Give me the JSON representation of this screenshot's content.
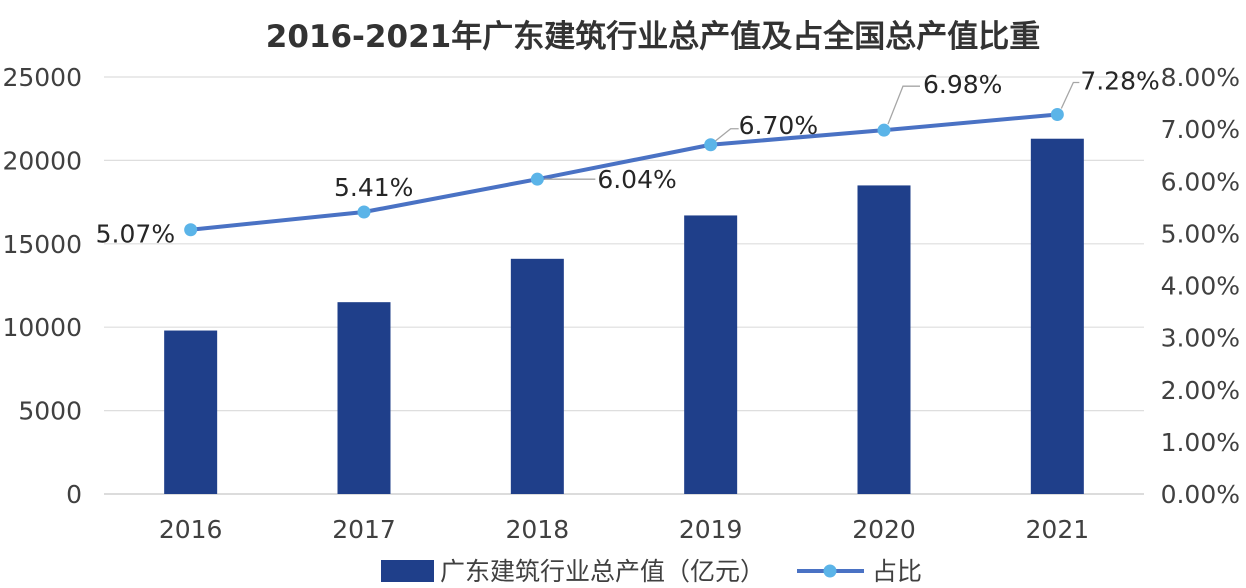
{
  "chart_data": {
    "type": "bar+line",
    "title": "2016-2021年广东建筑行业总产值及占全国总产值比重",
    "categories": [
      "2016",
      "2017",
      "2018",
      "2019",
      "2020",
      "2021"
    ],
    "series": [
      {
        "name": "广东建筑行业总产值（亿元）",
        "type": "bar",
        "axis": "left",
        "color": "#1f3f8a",
        "values": [
          9800,
          11500,
          14100,
          16700,
          18500,
          21300
        ]
      },
      {
        "name": "占比",
        "type": "line",
        "axis": "right",
        "color": "#4a72c4",
        "marker_color": "#5bb4e8",
        "values": [
          5.07,
          5.41,
          6.04,
          6.7,
          6.98,
          7.28
        ],
        "labels": [
          "5.07%",
          "5.41%",
          "6.04%",
          "6.70%",
          "6.98%",
          "7.28%"
        ]
      }
    ],
    "y_left": {
      "lim": [
        0,
        25000
      ],
      "ticks": [
        "0",
        "5000",
        "10000",
        "15000",
        "20000",
        "25000"
      ]
    },
    "y_right": {
      "lim": [
        0,
        8
      ],
      "ticks": [
        "0.00%",
        "1.00%",
        "2.00%",
        "3.00%",
        "4.00%",
        "5.00%",
        "6.00%",
        "7.00%",
        "8.00%"
      ]
    },
    "grid": true,
    "legend": "bottom"
  }
}
